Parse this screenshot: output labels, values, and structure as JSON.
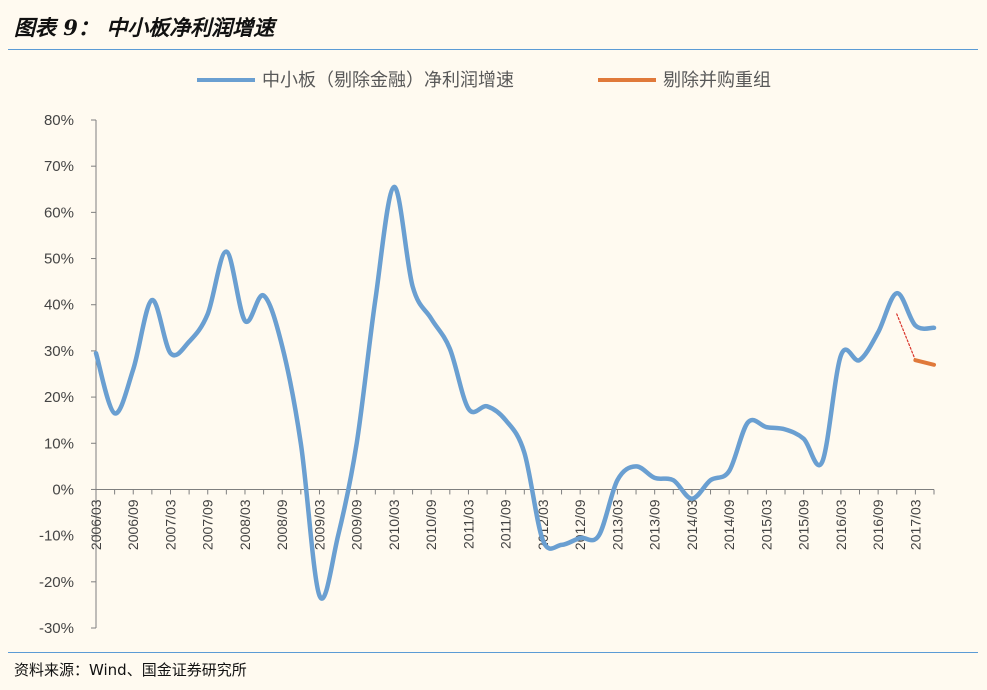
{
  "figure": {
    "title": "图表 9： 中小板净利润增速",
    "source": "资料来源：Wind、国金证券研究所"
  },
  "colors": {
    "series_main": "#6a9fd1",
    "series_adjusted": "#e0793a",
    "rule": "#5b9bd5",
    "axis": "#7f7f7f"
  },
  "chart_data": {
    "type": "line",
    "categories": [
      "2006/03",
      "2006/06",
      "2006/09",
      "2006/12",
      "2007/03",
      "2007/06",
      "2007/09",
      "2007/12",
      "2008/03",
      "2008/06",
      "2008/09",
      "2008/12",
      "2009/03",
      "2009/06",
      "2009/09",
      "2009/12",
      "2010/03",
      "2010/06",
      "2010/09",
      "2010/12",
      "2011/03",
      "2011/06",
      "2011/09",
      "2011/12",
      "2012/03",
      "2012/06",
      "2012/09",
      "2012/12",
      "2013/03",
      "2013/06",
      "2013/09",
      "2013/12",
      "2014/03",
      "2014/06",
      "2014/09",
      "2014/12",
      "2015/03",
      "2015/06",
      "2015/09",
      "2015/12",
      "2016/03",
      "2016/06",
      "2016/09",
      "2016/12",
      "2017/03",
      "2017/06"
    ],
    "x_tick_labels": [
      "2006/03",
      "2006/09",
      "2007/03",
      "2007/09",
      "2008/03",
      "2008/09",
      "2009/03",
      "2009/09",
      "2010/03",
      "2010/09",
      "2011/03",
      "2011/09",
      "2012/03",
      "2012/09",
      "2013/03",
      "2013/09",
      "2014/03",
      "2014/09",
      "2015/03",
      "2015/09",
      "2016/03",
      "2016/09",
      "2017/03"
    ],
    "y_tick_labels": [
      "-30%",
      "-20%",
      "-10%",
      "0%",
      "10%",
      "20%",
      "30%",
      "40%",
      "50%",
      "60%",
      "70%",
      "80%"
    ],
    "ylim": [
      -30,
      80
    ],
    "y_step": 10,
    "series": [
      {
        "name": "中小板（剔除金融）净利润增速",
        "values": [
          29.5,
          16.5,
          26,
          41,
          29.5,
          32,
          38,
          51.5,
          36.5,
          42,
          31,
          10,
          -23,
          -10,
          10,
          41,
          65.5,
          44,
          37,
          30.5,
          17.5,
          18,
          15,
          8,
          -11,
          -12,
          -10.5,
          -10,
          2,
          5,
          2.5,
          2,
          -2,
          2,
          4,
          14.5,
          13.5,
          13,
          11,
          6,
          29,
          28,
          34,
          42.5,
          35.5,
          35
        ]
      },
      {
        "name": "剔除并购重组",
        "values": [
          null,
          null,
          null,
          null,
          null,
          null,
          null,
          null,
          null,
          null,
          null,
          null,
          null,
          null,
          null,
          null,
          null,
          null,
          null,
          null,
          null,
          null,
          null,
          null,
          null,
          null,
          null,
          null,
          null,
          null,
          null,
          null,
          null,
          null,
          null,
          null,
          null,
          null,
          null,
          null,
          null,
          null,
          null,
          38,
          28,
          27
        ]
      }
    ],
    "grid": false,
    "legend_position": "top-center"
  }
}
